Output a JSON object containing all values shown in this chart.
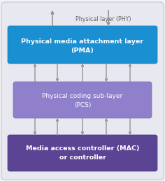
{
  "bg_color": "#f2f2f2",
  "outer_box_facecolor": "#e8e8f0",
  "outer_box_edgecolor": "#c5c5d5",
  "pma_facecolor": "#1a8fd1",
  "pma_edgecolor": "#1878b8",
  "pcs_facecolor": "#9080cc",
  "pcs_edgecolor": "#7a6ab8",
  "mac_facecolor": "#5c4494",
  "mac_edgecolor": "#4a3480",
  "arrow_color": "#8a8a8a",
  "text_white": "#ffffff",
  "text_gray": "#606060",
  "phy_label": "Physical layer (PHY)",
  "pma_line1": "Physical media attachment layer",
  "pma_line2": "(PMA)",
  "pcs_line1": "Physical coding sub-layer",
  "pcs_line2": "(PCS)",
  "mac_line1": "Media access controller (MAC)",
  "mac_line2": "or controller",
  "fig_w": 2.36,
  "fig_h": 2.59,
  "dpi": 100
}
